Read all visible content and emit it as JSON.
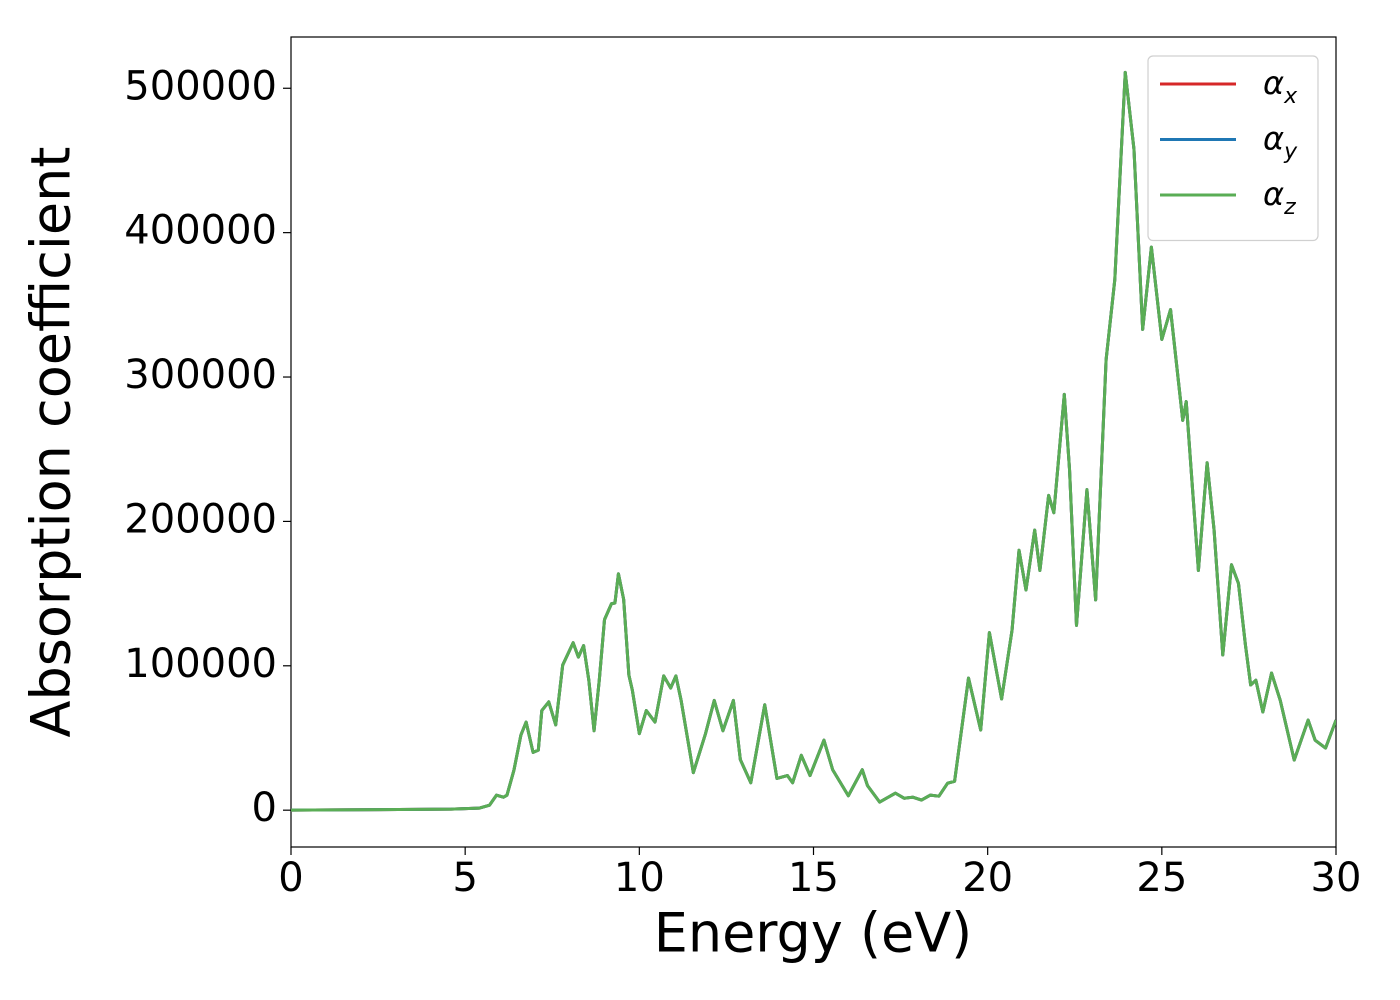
{
  "chart_data": {
    "type": "line",
    "xlabel": "Energy (eV)",
    "ylabel": "Absorption coefficient",
    "xlim": [
      0,
      30
    ],
    "ylim": [
      -25500,
      535500
    ],
    "xticks": [
      0,
      5,
      10,
      15,
      20,
      25,
      30
    ],
    "yticks": [
      0,
      100000,
      200000,
      300000,
      400000,
      500000
    ],
    "legend": "upper right",
    "x": [
      0,
      4.6,
      5.4,
      5.7,
      5.9,
      6.1,
      6.2,
      6.4,
      6.6,
      6.75,
      6.95,
      7.1,
      7.2,
      7.4,
      7.6,
      7.8,
      8.1,
      8.25,
      8.4,
      8.55,
      8.7,
      8.85,
      9.0,
      9.2,
      9.3,
      9.4,
      9.55,
      9.7,
      9.8,
      10.0,
      10.2,
      10.45,
      10.7,
      10.9,
      11.05,
      11.2,
      11.55,
      11.9,
      12.15,
      12.4,
      12.7,
      12.9,
      13.2,
      13.6,
      13.95,
      14.25,
      14.4,
      14.65,
      14.9,
      15.3,
      15.55,
      16.0,
      16.4,
      16.55,
      16.9,
      17.35,
      17.6,
      17.85,
      18.1,
      18.35,
      18.6,
      18.85,
      19.05,
      19.45,
      19.8,
      20.05,
      20.4,
      20.7,
      20.9,
      21.1,
      21.35,
      21.5,
      21.75,
      21.9,
      22.2,
      22.35,
      22.55,
      22.85,
      23.1,
      23.4,
      23.65,
      23.95,
      24.2,
      24.45,
      24.7,
      25.0,
      25.25,
      25.6,
      25.7,
      26.05,
      26.3,
      26.5,
      26.75,
      27.0,
      27.2,
      27.4,
      27.55,
      27.7,
      27.9,
      28.15,
      28.4,
      28.8,
      29.2,
      29.4,
      29.7,
      30
    ],
    "series": [
      {
        "name": "αx",
        "color": "#d62728",
        "values": [
          0,
          700,
          1400,
          3500,
          10400,
          9000,
          10400,
          27700,
          52000,
          61000,
          40000,
          41600,
          69000,
          75000,
          59000,
          100500,
          116000,
          106000,
          114000,
          90000,
          55000,
          90000,
          132000,
          143000,
          143500,
          163700,
          146000,
          93600,
          83000,
          53000,
          69000,
          61000,
          93000,
          84600,
          93000,
          76000,
          26000,
          53000,
          76000,
          55000,
          76000,
          35000,
          19000,
          73000,
          22000,
          24000,
          19000,
          38000,
          24000,
          48500,
          28000,
          10000,
          28000,
          17000,
          5600,
          11800,
          8300,
          9000,
          7000,
          10400,
          9700,
          18700,
          20000,
          91500,
          55500,
          123000,
          77000,
          124700,
          180000,
          152500,
          194000,
          166000,
          218000,
          206000,
          288000,
          236000,
          128000,
          222000,
          145600,
          312000,
          367500,
          511000,
          457700,
          333000,
          390000,
          326000,
          346700,
          270000,
          283000,
          166000,
          240600,
          194000,
          107500,
          170000,
          157000,
          114400,
          86700,
          90000,
          68000,
          95000,
          76000,
          34700,
          62400,
          48500,
          43000,
          62400
        ]
      },
      {
        "name": "αy",
        "color": "#1f77b4",
        "values": [
          0,
          700,
          1400,
          3500,
          10400,
          9000,
          10400,
          27700,
          52000,
          61000,
          40000,
          41600,
          69000,
          75000,
          59000,
          100500,
          116000,
          106000,
          114000,
          90000,
          55000,
          90000,
          132000,
          143000,
          143500,
          163700,
          146000,
          93600,
          83000,
          53000,
          69000,
          61000,
          93000,
          84600,
          93000,
          76000,
          26000,
          53000,
          76000,
          55000,
          76000,
          35000,
          19000,
          73000,
          22000,
          24000,
          19000,
          38000,
          24000,
          48500,
          28000,
          10000,
          28000,
          17000,
          5600,
          11800,
          8300,
          9000,
          7000,
          10400,
          9700,
          18700,
          20000,
          91500,
          55500,
          123000,
          77000,
          124700,
          180000,
          152500,
          194000,
          166000,
          218000,
          206000,
          288000,
          236000,
          128000,
          222000,
          145600,
          312000,
          367500,
          511000,
          457700,
          333000,
          390000,
          326000,
          346700,
          270000,
          283000,
          166000,
          240600,
          194000,
          107500,
          170000,
          157000,
          114400,
          86700,
          90000,
          68000,
          95000,
          76000,
          34700,
          62400,
          48500,
          43000,
          62400
        ]
      },
      {
        "name": "αz",
        "color": "#5aad55",
        "values": [
          0,
          700,
          1400,
          3500,
          10400,
          9000,
          10400,
          27700,
          52000,
          61000,
          40000,
          41600,
          69000,
          75000,
          59000,
          100500,
          116000,
          106000,
          114000,
          90000,
          55000,
          90000,
          132000,
          143000,
          143500,
          163700,
          146000,
          93600,
          83000,
          53000,
          69000,
          61000,
          93000,
          84600,
          93000,
          76000,
          26000,
          53000,
          76000,
          55000,
          76000,
          35000,
          19000,
          73000,
          22000,
          24000,
          19000,
          38000,
          24000,
          48500,
          28000,
          10000,
          28000,
          17000,
          5600,
          11800,
          8300,
          9000,
          7000,
          10400,
          9700,
          18700,
          20000,
          91500,
          55500,
          123000,
          77000,
          124700,
          180000,
          152500,
          194000,
          166000,
          218000,
          206000,
          288000,
          236000,
          128000,
          222000,
          145600,
          312000,
          367500,
          511000,
          457700,
          333000,
          390000,
          326000,
          346700,
          270000,
          283000,
          166000,
          240600,
          194000,
          107500,
          170000,
          157000,
          114400,
          86700,
          90000,
          68000,
          95000,
          76000,
          34700,
          62400,
          48500,
          43000,
          62400
        ]
      }
    ]
  }
}
